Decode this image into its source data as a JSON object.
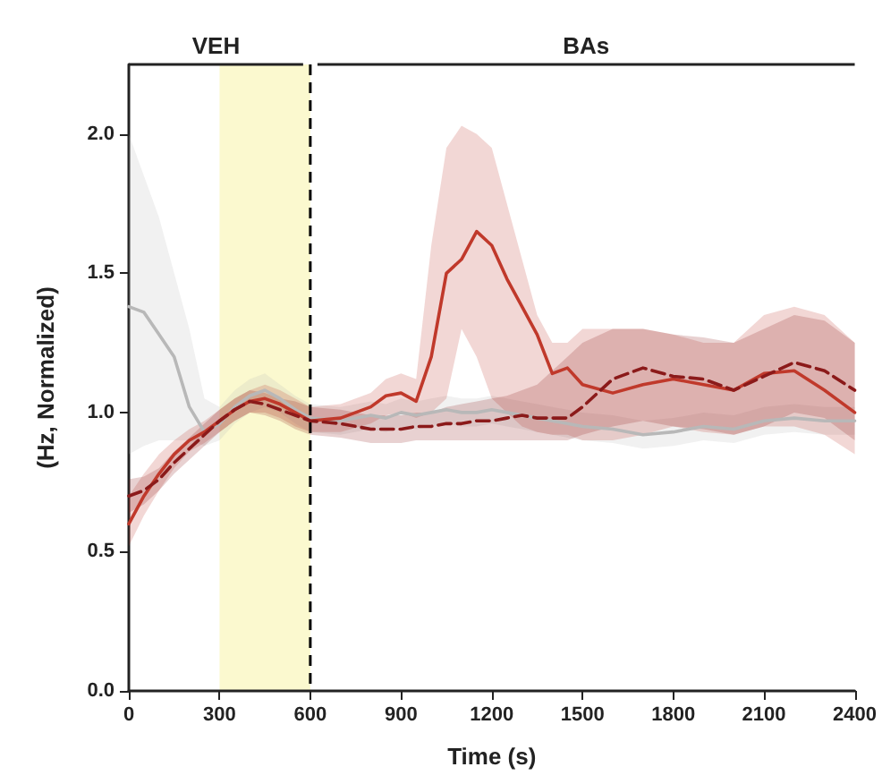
{
  "chart_data": {
    "type": "line",
    "xlabel": "Time (s)",
    "ylabel": "(Hz, Normalized)",
    "x": [
      0,
      50,
      100,
      150,
      200,
      250,
      300,
      350,
      400,
      450,
      500,
      550,
      600,
      700,
      800,
      850,
      900,
      950,
      1000,
      1050,
      1100,
      1150,
      1200,
      1250,
      1300,
      1350,
      1400,
      1450,
      1500,
      1600,
      1700,
      1800,
      1900,
      2000,
      2100,
      2200,
      2300,
      2400
    ],
    "xlim": [
      0,
      2400
    ],
    "xticks": [
      0,
      300,
      600,
      900,
      1200,
      1500,
      1800,
      2100,
      2400
    ],
    "ylim": [
      0,
      2.25
    ],
    "yticks": [
      {
        "value": 0,
        "label": "0.0"
      },
      {
        "value": 0.5,
        "label": "0.5"
      },
      {
        "value": 1,
        "label": "1.0"
      },
      {
        "value": 1.5,
        "label": "1.5"
      },
      {
        "value": 2,
        "label": "2.0"
      }
    ],
    "series": [
      {
        "color": "#b8b8b8",
        "line_style": "solid",
        "values": [
          1.38,
          1.36,
          1.28,
          1.2,
          1.02,
          0.93,
          0.96,
          1.02,
          1.06,
          1.08,
          1.05,
          1.01,
          0.98,
          0.97,
          0.99,
          0.98,
          1.0,
          0.99,
          1.0,
          1.01,
          1.0,
          1.0,
          1.01,
          1.0,
          0.99,
          0.98,
          0.97,
          0.96,
          0.95,
          0.94,
          0.92,
          0.93,
          0.95,
          0.94,
          0.97,
          0.98,
          0.97,
          0.97
        ],
        "lower": [
          0.85,
          0.88,
          0.9,
          0.9,
          0.9,
          0.88,
          0.9,
          0.96,
          1.0,
          1.02,
          1.0,
          0.96,
          0.93,
          0.92,
          0.94,
          0.93,
          0.95,
          0.94,
          0.95,
          0.96,
          0.95,
          0.95,
          0.96,
          0.95,
          0.94,
          0.93,
          0.92,
          0.91,
          0.9,
          0.89,
          0.87,
          0.88,
          0.9,
          0.89,
          0.92,
          0.93,
          0.92,
          0.92
        ],
        "upper": [
          2.0,
          1.85,
          1.7,
          1.5,
          1.3,
          1.05,
          1.02,
          1.08,
          1.12,
          1.14,
          1.1,
          1.06,
          1.03,
          1.02,
          1.04,
          1.03,
          1.05,
          1.04,
          1.05,
          1.06,
          1.05,
          1.05,
          1.06,
          1.05,
          1.04,
          1.03,
          1.02,
          1.01,
          1.0,
          0.99,
          0.97,
          0.98,
          1.0,
          0.99,
          1.02,
          1.03,
          1.02,
          1.02
        ]
      },
      {
        "color": "#c0392b",
        "line_style": "solid",
        "values": [
          0.6,
          0.7,
          0.78,
          0.85,
          0.9,
          0.93,
          0.97,
          1.01,
          1.04,
          1.05,
          1.03,
          1.0,
          0.97,
          0.98,
          1.02,
          1.06,
          1.07,
          1.04,
          1.2,
          1.5,
          1.55,
          1.65,
          1.6,
          1.48,
          1.38,
          1.28,
          1.14,
          1.16,
          1.1,
          1.07,
          1.1,
          1.12,
          1.1,
          1.08,
          1.14,
          1.15,
          1.08,
          1.0
        ],
        "lower": [
          0.52,
          0.63,
          0.72,
          0.8,
          0.86,
          0.89,
          0.93,
          0.97,
          1.0,
          1.0,
          0.98,
          0.95,
          0.93,
          0.93,
          0.96,
          0.99,
          1.0,
          0.98,
          1.0,
          1.05,
          1.3,
          1.2,
          1.05,
          1.0,
          0.95,
          0.93,
          0.92,
          0.92,
          0.9,
          0.9,
          0.92,
          0.95,
          0.93,
          0.92,
          0.95,
          0.95,
          0.92,
          0.85
        ],
        "upper": [
          0.7,
          0.78,
          0.85,
          0.9,
          0.94,
          0.97,
          1.01,
          1.05,
          1.08,
          1.1,
          1.08,
          1.05,
          1.02,
          1.03,
          1.07,
          1.12,
          1.14,
          1.12,
          1.6,
          1.95,
          2.03,
          2.0,
          1.95,
          1.75,
          1.55,
          1.35,
          1.25,
          1.25,
          1.3,
          1.3,
          1.3,
          1.28,
          1.25,
          1.25,
          1.35,
          1.38,
          1.35,
          1.25
        ]
      },
      {
        "color": "#8b1a1a",
        "line_style": "dashed",
        "values": [
          0.7,
          0.72,
          0.76,
          0.82,
          0.87,
          0.92,
          0.97,
          1.01,
          1.04,
          1.03,
          1.01,
          0.99,
          0.97,
          0.96,
          0.94,
          0.94,
          0.94,
          0.95,
          0.95,
          0.96,
          0.96,
          0.97,
          0.97,
          0.98,
          0.99,
          0.98,
          0.98,
          0.98,
          1.02,
          1.12,
          1.16,
          1.13,
          1.12,
          1.08,
          1.13,
          1.18,
          1.15,
          1.08
        ],
        "lower": [
          0.64,
          0.67,
          0.72,
          0.78,
          0.83,
          0.88,
          0.93,
          0.97,
          1.0,
          0.99,
          0.97,
          0.94,
          0.92,
          0.91,
          0.89,
          0.89,
          0.89,
          0.9,
          0.9,
          0.9,
          0.9,
          0.9,
          0.9,
          0.9,
          0.9,
          0.9,
          0.9,
          0.9,
          0.92,
          0.95,
          0.97,
          0.95,
          0.94,
          0.92,
          0.95,
          1.0,
          0.98,
          0.9
        ],
        "upper": [
          0.76,
          0.77,
          0.8,
          0.86,
          0.91,
          0.96,
          1.01,
          1.05,
          1.08,
          1.07,
          1.05,
          1.04,
          1.02,
          1.01,
          0.99,
          0.99,
          0.99,
          1.0,
          1.0,
          1.02,
          1.03,
          1.04,
          1.05,
          1.06,
          1.08,
          1.1,
          1.15,
          1.2,
          1.25,
          1.3,
          1.3,
          1.28,
          1.27,
          1.25,
          1.3,
          1.35,
          1.33,
          1.25
        ]
      }
    ],
    "bands": [
      {
        "axis": "x",
        "from": 300,
        "to": 600,
        "color": "#fbf9cf"
      }
    ],
    "ref_lines": [
      {
        "axis": "x",
        "value": 600,
        "color": "#000000",
        "line_style": "dashed"
      }
    ],
    "annotations": [
      "VEH",
      "BAs"
    ],
    "grid": false,
    "marker": "none"
  }
}
